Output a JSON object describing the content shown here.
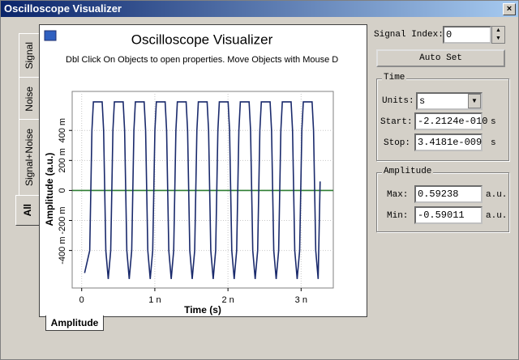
{
  "window": {
    "title": "Oscilloscope Visualizer"
  },
  "tabs": [
    "Signal",
    "Noise",
    "Signal+Noise",
    "All"
  ],
  "bottom_tab": "Amplitude",
  "chart_data": {
    "type": "line",
    "title": "Oscilloscope Visualizer",
    "subtitle": "Dbl Click On Objects to open properties.  Move Objects with Mouse D",
    "x_label": "Time (s)",
    "y_label": "Amplitude (a.u.)",
    "xlim": [
      -0.13,
      3.44
    ],
    "ylim": [
      -0.65,
      0.66
    ],
    "xticks": [
      0,
      {
        "value": 1,
        "label": "1 n"
      },
      {
        "value": 2,
        "label": "2 n"
      },
      {
        "value": 3,
        "label": "3 n"
      }
    ],
    "yticks": [
      {
        "value": -0.4,
        "label": "-400 m"
      },
      {
        "value": -0.2,
        "label": "-200 m"
      },
      0,
      {
        "value": 0.2,
        "label": "200 m"
      },
      {
        "value": 0.4,
        "label": "400 m"
      }
    ],
    "grid": true,
    "series": [
      {
        "color": "#1a2a6c",
        "x": [
          0.04,
          0.11,
          0.14,
          0.16,
          0.28,
          0.3,
          0.33,
          0.363,
          0.397,
          0.427,
          0.447,
          0.567,
          0.587,
          0.617,
          0.65,
          0.684,
          0.714,
          0.734,
          0.854,
          0.874,
          0.904,
          0.937,
          0.971,
          1.001,
          1.021,
          1.141,
          1.161,
          1.191,
          1.224,
          1.258,
          1.288,
          1.308,
          1.428,
          1.448,
          1.478,
          1.511,
          1.545,
          1.575,
          1.595,
          1.715,
          1.735,
          1.765,
          1.798,
          1.832,
          1.862,
          1.882,
          2.002,
          2.022,
          2.052,
          2.085,
          2.119,
          2.149,
          2.169,
          2.289,
          2.309,
          2.339,
          2.372,
          2.406,
          2.436,
          2.456,
          2.576,
          2.596,
          2.626,
          2.659,
          2.693,
          2.723,
          2.743,
          2.863,
          2.883,
          2.913,
          2.946,
          2.98,
          3.01,
          3.03,
          3.15,
          3.17,
          3.2,
          3.233,
          3.26
        ],
        "values": [
          -0.55,
          -0.4,
          0.4,
          0.59,
          0.59,
          0.4,
          -0.4,
          -0.59,
          -0.4,
          0.4,
          0.59,
          0.59,
          0.4,
          -0.4,
          -0.59,
          -0.4,
          0.4,
          0.59,
          0.59,
          0.4,
          -0.4,
          -0.59,
          -0.4,
          0.4,
          0.59,
          0.59,
          0.4,
          -0.4,
          -0.59,
          -0.4,
          0.4,
          0.59,
          0.59,
          0.4,
          -0.4,
          -0.59,
          -0.4,
          0.4,
          0.59,
          0.59,
          0.4,
          -0.4,
          -0.59,
          -0.4,
          0.4,
          0.59,
          0.59,
          0.4,
          -0.4,
          -0.59,
          -0.4,
          0.4,
          0.59,
          0.59,
          0.4,
          -0.4,
          -0.59,
          -0.4,
          0.4,
          0.59,
          0.59,
          0.4,
          -0.4,
          -0.59,
          -0.4,
          0.4,
          0.59,
          0.59,
          0.4,
          -0.4,
          -0.59,
          -0.4,
          0.4,
          0.59,
          0.59,
          0.4,
          -0.4,
          -0.59,
          0.06
        ]
      },
      {
        "color": "#2e7d32",
        "x": [
          -0.13,
          3.44
        ],
        "values": [
          0,
          0
        ]
      }
    ]
  },
  "controls": {
    "signal_index_label": "Signal Index:",
    "signal_index": "0",
    "auto_set": "Auto Set",
    "time": {
      "title": "Time",
      "units_label": "Units:",
      "units": "s",
      "start_label": "Start:",
      "start": "-2.2124e-010",
      "start_unit": "s",
      "stop_label": "Stop:",
      "stop": "3.4181e-009",
      "stop_unit": "s"
    },
    "amplitude": {
      "title": "Amplitude",
      "max_label": "Max:",
      "max": "0.59238",
      "max_unit": "a.u.",
      "min_label": "Min:",
      "min": "-0.59011",
      "min_unit": "a.u."
    }
  }
}
